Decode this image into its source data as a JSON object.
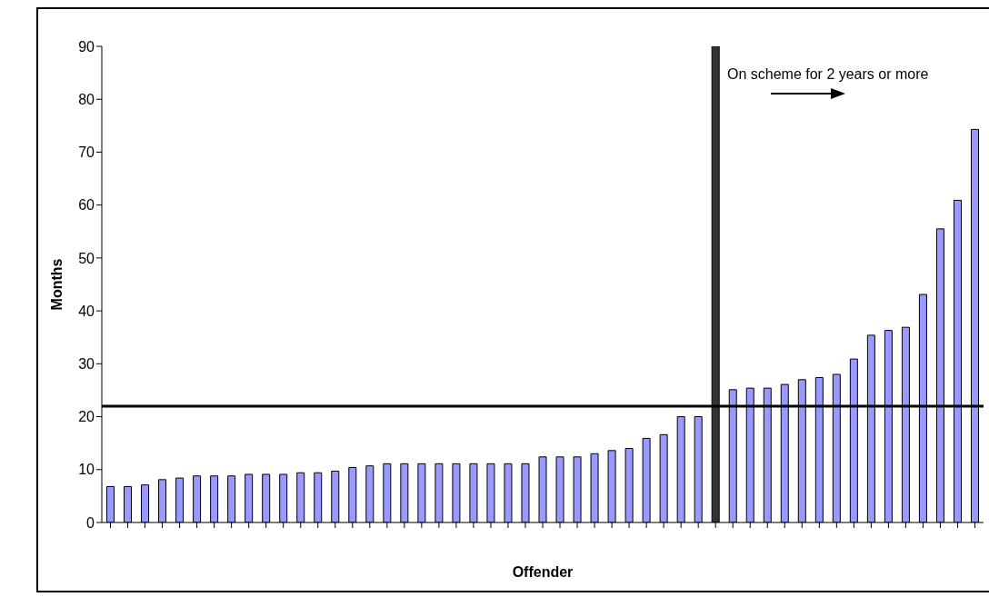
{
  "chart_data": {
    "type": "bar",
    "xlabel": "Offender",
    "ylabel": "Months",
    "categories": [
      null,
      null,
      null,
      null,
      null,
      null,
      null,
      null,
      null,
      null,
      null,
      null,
      null,
      null,
      null,
      null,
      null,
      null,
      null,
      null,
      null,
      null,
      null,
      null,
      null,
      null,
      null,
      null,
      null,
      null,
      null,
      null,
      null,
      null,
      null,
      null,
      null,
      null,
      null,
      null,
      null,
      null,
      null,
      null,
      null,
      null,
      null,
      null,
      null,
      null,
      null
    ],
    "values": [
      6.8,
      6.8,
      7.1,
      8.1,
      8.4,
      8.8,
      8.8,
      8.8,
      9.1,
      9.1,
      9.1,
      9.4,
      9.4,
      9.7,
      10.4,
      10.7,
      11.1,
      11.1,
      11.1,
      11.1,
      11.1,
      11.1,
      11.1,
      11.1,
      11.1,
      12.4,
      12.4,
      12.4,
      13,
      13.6,
      14,
      15.9,
      16.6,
      20,
      20,
      90,
      25.1,
      25.4,
      25.4,
      26.1,
      27,
      27.4,
      28,
      30.9,
      35.4,
      36.3,
      36.9,
      43.1,
      55.5,
      60.9,
      74.3
    ],
    "colors": [
      "#9999ff",
      "#9999ff",
      "#9999ff",
      "#9999ff",
      "#9999ff",
      "#9999ff",
      "#9999ff",
      "#9999ff",
      "#9999ff",
      "#9999ff",
      "#9999ff",
      "#9999ff",
      "#9999ff",
      "#9999ff",
      "#9999ff",
      "#9999ff",
      "#9999ff",
      "#9999ff",
      "#9999ff",
      "#9999ff",
      "#9999ff",
      "#9999ff",
      "#9999ff",
      "#9999ff",
      "#9999ff",
      "#9999ff",
      "#9999ff",
      "#9999ff",
      "#9999ff",
      "#9999ff",
      "#9999ff",
      "#9999ff",
      "#9999ff",
      "#9999ff",
      "#9999ff",
      "#333333",
      "#9999ff",
      "#9999ff",
      "#9999ff",
      "#9999ff",
      "#9999ff",
      "#9999ff",
      "#9999ff",
      "#9999ff",
      "#9999ff",
      "#9999ff",
      "#9999ff",
      "#9999ff",
      "#9999ff",
      "#9999ff",
      "#9999ff"
    ],
    "ylim": [
      0,
      90
    ],
    "yticks": [
      0,
      10,
      20,
      30,
      40,
      50,
      60,
      70,
      80,
      90
    ],
    "ref_lines": [
      {
        "axis": "y",
        "value": 22,
        "color": "#000000"
      }
    ],
    "annotations": [
      "On scheme for 2 years or more"
    ],
    "grid": false,
    "tick_labels": "y"
  }
}
